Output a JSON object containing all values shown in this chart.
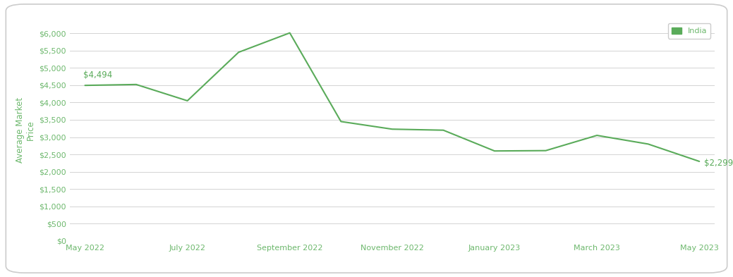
{
  "x_values": [
    0,
    1,
    2,
    3,
    4,
    5,
    6,
    7,
    8,
    9,
    10,
    11,
    12
  ],
  "y_values": [
    4494,
    4520,
    4050,
    5450,
    6010,
    3450,
    3230,
    3200,
    2600,
    2610,
    3050,
    2800,
    2299
  ],
  "line_color": "#5aab5a",
  "line_width": 1.5,
  "legend_label": "India",
  "ylabel": "Average Market\nPrice",
  "ylabel_color": "#6db86d",
  "ylabel_fontsize": 8.5,
  "tick_color": "#6db86d",
  "tick_fontsize": 8,
  "grid_color": "#d3d3d3",
  "background_color": "#ffffff",
  "annotation_start_label": "$4,494",
  "annotation_end_label": "$2,299",
  "annotation_color": "#5aab5a",
  "annotation_fontsize": 8.5,
  "ytick_labels": [
    "$0",
    "$500",
    "$1,000",
    "$1,500",
    "$2,000",
    "$2,500",
    "$3,000",
    "$3,500",
    "$4,000",
    "$4,500",
    "$5,000",
    "$5,500",
    "$6,000"
  ],
  "ytick_values": [
    0,
    500,
    1000,
    1500,
    2000,
    2500,
    3000,
    3500,
    4000,
    4500,
    5000,
    5500,
    6000
  ],
  "xtick_positions": [
    0,
    2,
    4,
    6,
    8,
    10,
    12
  ],
  "xtick_labels": [
    "May 2022",
    "July 2022",
    "September 2022",
    "November 2022",
    "January 2023",
    "March 2023",
    "May 2023"
  ],
  "ylim": [
    0,
    6400
  ],
  "xlim": [
    -0.3,
    12.3
  ]
}
